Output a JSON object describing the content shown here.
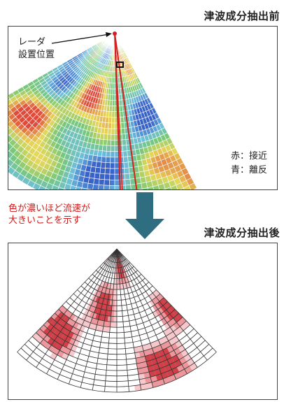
{
  "before": {
    "title": "津波成分抽出前",
    "radar_label": [
      "レーダ",
      "設置位置"
    ],
    "legend": [
      "赤：接近",
      "青：離反"
    ]
  },
  "after": {
    "title": "津波成分抽出後"
  },
  "note": [
    "色が濃いほど流速が",
    "大きいことを示す"
  ],
  "colors": {
    "approach_red": "#e04a3a",
    "recede_blue": "#3a63c8",
    "arrow_teal": "#2f6e80",
    "note_red": "#d01818",
    "highlight_red": "#d42020"
  }
}
